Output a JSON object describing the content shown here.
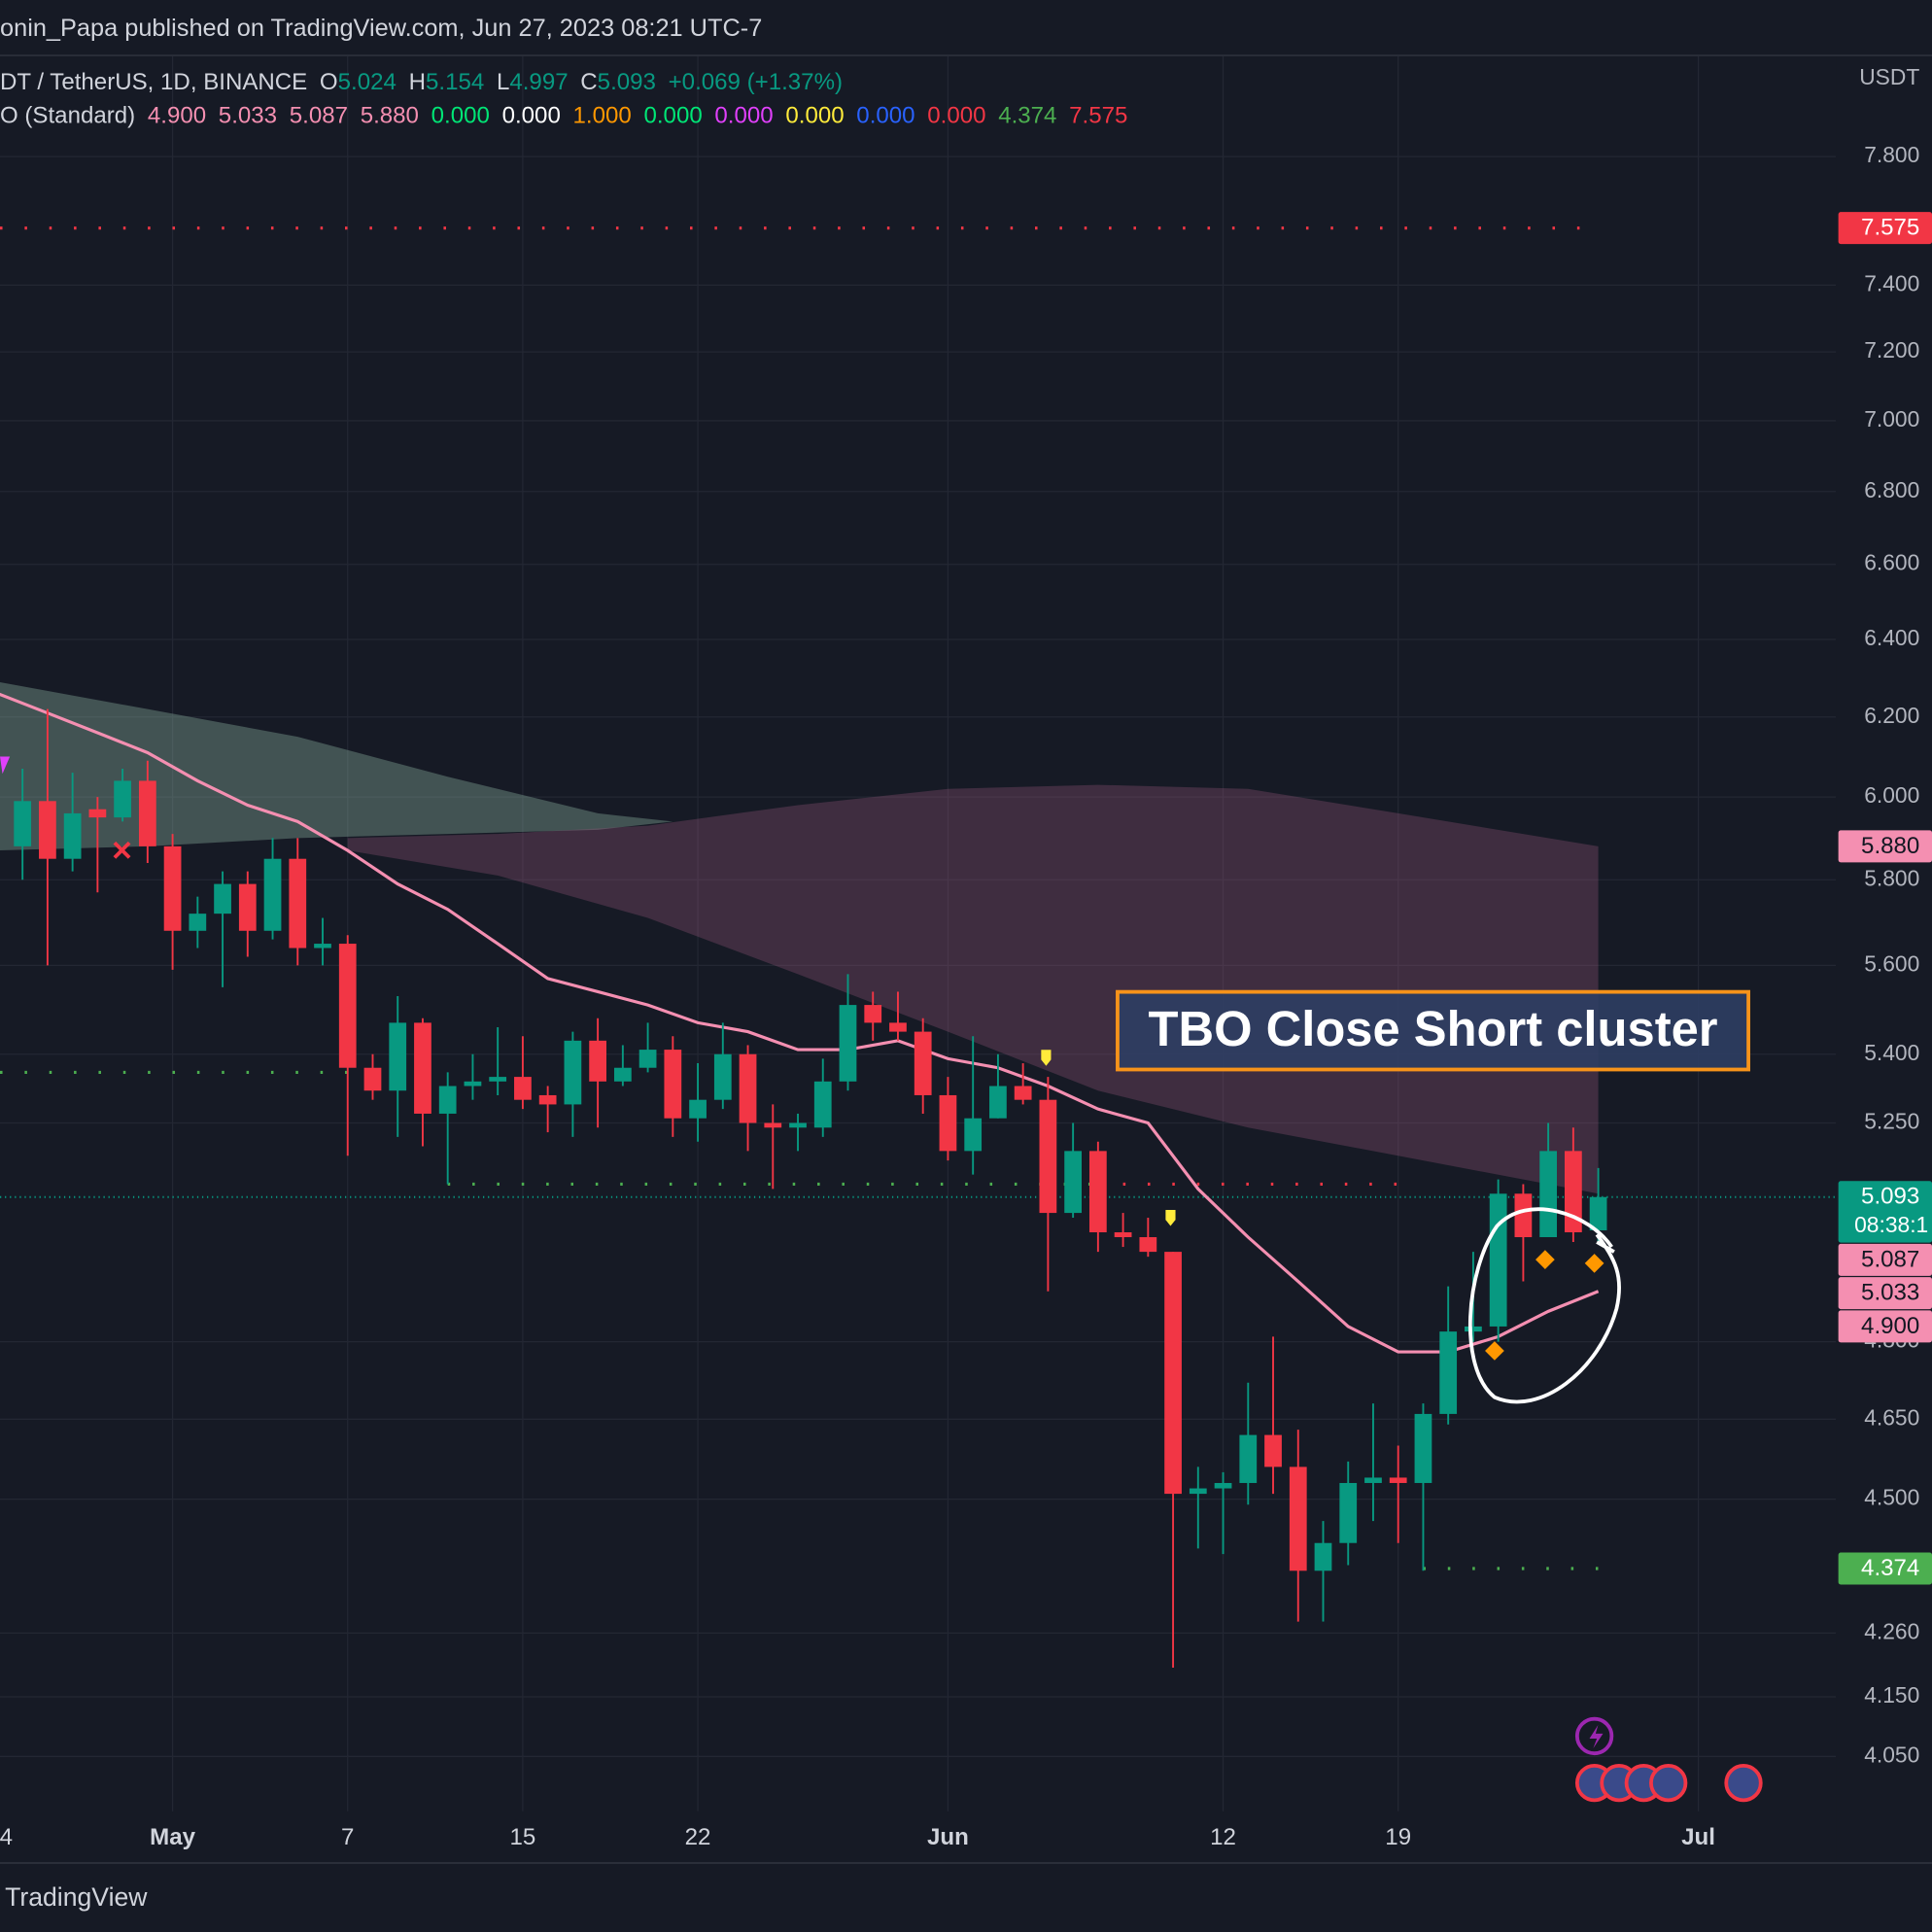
{
  "chart_data": {
    "type": "candlestick",
    "header": "onin_Papa published on TradingView.com, Jun 27, 2023 08:21 UTC-7",
    "unit": "USDT",
    "legend_line1": [
      {
        "text": "DT / TetherUS, 1D, BINANCE",
        "color": "#d1d4dc"
      },
      {
        "text": "O",
        "color": "#d1d4dc"
      },
      {
        "text": "5.024",
        "color": "#089981"
      },
      {
        "text": "H",
        "color": "#d1d4dc"
      },
      {
        "text": "5.154",
        "color": "#089981"
      },
      {
        "text": "L",
        "color": "#d1d4dc"
      },
      {
        "text": "4.997",
        "color": "#089981"
      },
      {
        "text": "C",
        "color": "#d1d4dc"
      },
      {
        "text": "5.093",
        "color": "#089981"
      },
      {
        "text": "+0.069 (+1.37%)",
        "color": "#089981"
      }
    ],
    "legend_line2": [
      {
        "text": "O (Standard)",
        "color": "#d1d4dc"
      },
      {
        "text": "4.900",
        "color": "#f48fb1"
      },
      {
        "text": "5.033",
        "color": "#f48fb1"
      },
      {
        "text": "5.087",
        "color": "#f48fb1"
      },
      {
        "text": "5.880",
        "color": "#f48fb1"
      },
      {
        "text": "0.000",
        "color": "#00e676"
      },
      {
        "text": "0.000",
        "color": "#ffffff"
      },
      {
        "text": "1.000",
        "color": "#ff9800"
      },
      {
        "text": "0.000",
        "color": "#00e676"
      },
      {
        "text": "0.000",
        "color": "#e040fb"
      },
      {
        "text": "0.000",
        "color": "#ffeb3b"
      },
      {
        "text": "0.000",
        "color": "#2962ff"
      },
      {
        "text": "0.000",
        "color": "#f23645"
      },
      {
        "text": "4.374",
        "color": "#4caf50"
      },
      {
        "text": "7.575",
        "color": "#f23645"
      }
    ],
    "log_scale": true,
    "grid": true,
    "ylim": [
      3.96,
      8.13
    ],
    "yticks": [
      {
        "value": 7.8,
        "label": "7.800"
      },
      {
        "value": 7.4,
        "label": "7.400"
      },
      {
        "value": 7.2,
        "label": "7.200"
      },
      {
        "value": 7.0,
        "label": "7.000"
      },
      {
        "value": 6.8,
        "label": "6.800"
      },
      {
        "value": 6.6,
        "label": "6.600"
      },
      {
        "value": 6.4,
        "label": "6.400"
      },
      {
        "value": 6.2,
        "label": "6.200"
      },
      {
        "value": 6.0,
        "label": "6.000"
      },
      {
        "value": 5.8,
        "label": "5.800"
      },
      {
        "value": 5.6,
        "label": "5.600"
      },
      {
        "value": 5.4,
        "label": "5.400"
      },
      {
        "value": 5.25,
        "label": "5.250"
      },
      {
        "value": 4.8,
        "label": "4.800"
      },
      {
        "value": 4.65,
        "label": "4.650"
      },
      {
        "value": 4.5,
        "label": "4.500"
      },
      {
        "value": 4.26,
        "label": "4.260"
      },
      {
        "value": 4.15,
        "label": "4.150"
      },
      {
        "value": 4.05,
        "label": "4.050"
      }
    ],
    "xlim": [
      -6.9,
      66.5
    ],
    "xticks": [
      {
        "value": -7,
        "label": "4"
      },
      {
        "value": 0,
        "label": "May"
      },
      7,
      {
        "value": 14,
        "label": "15"
      },
      {
        "value": 21,
        "label": "22"
      },
      {
        "value": 31,
        "label": "Jun"
      },
      {
        "value": 42,
        "label": "12"
      },
      {
        "value": 49,
        "label": "19"
      },
      {
        "value": 61,
        "label": "Jul"
      }
    ],
    "up_color": "#089981",
    "down_color": "#f23645",
    "candles": {
      "x": [
        -6,
        -5,
        -4,
        -3,
        -2,
        -1,
        0,
        1,
        2,
        3,
        4,
        5,
        6,
        7,
        8,
        9,
        10,
        11,
        12,
        13,
        14,
        15,
        16,
        17,
        18,
        19,
        20,
        21,
        22,
        23,
        24,
        25,
        26,
        27,
        28,
        29,
        30,
        31,
        32,
        33,
        34,
        35,
        36,
        37,
        38,
        39,
        40,
        41,
        42,
        43,
        44,
        45,
        46,
        47,
        48,
        49,
        50,
        51,
        52,
        53,
        54,
        55,
        56,
        57
      ],
      "open": [
        5.88,
        5.99,
        5.85,
        5.97,
        5.95,
        6.04,
        5.88,
        5.68,
        5.72,
        5.79,
        5.68,
        5.85,
        5.64,
        5.65,
        5.37,
        5.32,
        5.47,
        5.27,
        5.33,
        5.34,
        5.35,
        5.31,
        5.29,
        5.43,
        5.34,
        5.37,
        5.41,
        5.26,
        5.3,
        5.4,
        5.25,
        5.24,
        5.24,
        5.34,
        5.51,
        5.47,
        5.45,
        5.31,
        5.19,
        5.26,
        5.33,
        5.3,
        5.06,
        5.19,
        5.02,
        5.01,
        4.98,
        4.51,
        4.52,
        4.53,
        4.62,
        4.56,
        4.37,
        4.42,
        4.53,
        4.54,
        4.53,
        4.66,
        4.82,
        4.83,
        5.1,
        5.01,
        5.19,
        5.024
      ],
      "high": [
        6.07,
        6.22,
        6.06,
        6.0,
        6.07,
        6.09,
        5.91,
        5.76,
        5.82,
        5.82,
        5.9,
        5.9,
        5.71,
        5.67,
        5.4,
        5.53,
        5.48,
        5.36,
        5.4,
        5.46,
        5.44,
        5.33,
        5.45,
        5.48,
        5.42,
        5.47,
        5.44,
        5.38,
        5.47,
        5.42,
        5.29,
        5.27,
        5.39,
        5.58,
        5.54,
        5.54,
        5.48,
        5.35,
        5.44,
        5.4,
        5.38,
        5.35,
        5.25,
        5.21,
        5.06,
        5.05,
        4.98,
        4.56,
        4.55,
        4.72,
        4.81,
        4.63,
        4.46,
        4.57,
        4.68,
        4.6,
        4.68,
        4.91,
        4.98,
        5.13,
        5.12,
        5.25,
        5.24,
        5.154
      ],
      "low": [
        5.8,
        5.6,
        5.82,
        5.77,
        5.94,
        5.84,
        5.59,
        5.64,
        5.55,
        5.62,
        5.66,
        5.6,
        5.6,
        5.18,
        5.3,
        5.22,
        5.2,
        5.12,
        5.3,
        5.31,
        5.28,
        5.23,
        5.22,
        5.24,
        5.33,
        5.36,
        5.22,
        5.21,
        5.28,
        5.19,
        5.11,
        5.19,
        5.22,
        5.32,
        5.43,
        5.43,
        5.27,
        5.17,
        5.14,
        5.26,
        5.29,
        4.9,
        5.05,
        4.98,
        4.99,
        4.97,
        4.2,
        4.41,
        4.4,
        4.49,
        4.51,
        4.28,
        4.28,
        4.38,
        4.46,
        4.42,
        4.37,
        4.64,
        4.8,
        4.8,
        4.92,
        5.01,
        5.0,
        4.997
      ],
      "close": [
        5.99,
        5.85,
        5.96,
        5.95,
        6.04,
        5.88,
        5.68,
        5.72,
        5.79,
        5.68,
        5.85,
        5.64,
        5.65,
        5.37,
        5.32,
        5.47,
        5.27,
        5.33,
        5.34,
        5.35,
        5.3,
        5.29,
        5.43,
        5.34,
        5.37,
        5.41,
        5.26,
        5.3,
        5.4,
        5.25,
        5.24,
        5.25,
        5.34,
        5.51,
        5.47,
        5.45,
        5.31,
        5.19,
        5.26,
        5.33,
        5.3,
        5.06,
        5.19,
        5.02,
        5.01,
        4.98,
        4.51,
        4.52,
        4.53,
        4.62,
        4.56,
        4.37,
        4.42,
        4.53,
        4.54,
        4.53,
        4.66,
        4.82,
        4.83,
        5.1,
        5.01,
        5.19,
        5.02,
        5.093
      ]
    },
    "ma": {
      "color": "#f48fb1",
      "x": [
        -7,
        -5,
        -3,
        -1,
        1,
        3,
        5,
        7,
        9,
        11,
        13,
        15,
        17,
        19,
        21,
        23,
        25,
        27,
        29,
        31,
        33,
        35,
        37,
        39,
        41,
        43,
        45,
        47,
        49,
        51,
        53,
        55,
        57
      ],
      "values": [
        6.26,
        6.21,
        6.16,
        6.11,
        6.04,
        5.98,
        5.94,
        5.87,
        5.79,
        5.73,
        5.65,
        5.57,
        5.54,
        5.51,
        5.47,
        5.45,
        5.41,
        5.41,
        5.43,
        5.39,
        5.37,
        5.33,
        5.28,
        5.25,
        5.11,
        5.01,
        4.92,
        4.83,
        4.78,
        4.78,
        4.81,
        4.86,
        4.9
      ]
    },
    "clouds": [
      {
        "color": "rgba(140,175,160,0.38)",
        "x": [
          -7,
          -1,
          5,
          11,
          17,
          20
        ],
        "upper": [
          6.29,
          6.22,
          6.15,
          6.05,
          5.96,
          5.94
        ],
        "lower": [
          5.87,
          5.88,
          5.9,
          5.91,
          5.92,
          5.94
        ]
      },
      {
        "color": "rgba(150,85,120,0.33)",
        "x": [
          7,
          13,
          19,
          25,
          31,
          37,
          43,
          49,
          57
        ],
        "upper": [
          5.9,
          5.91,
          5.93,
          5.98,
          6.02,
          6.03,
          6.02,
          5.96,
          5.88
        ],
        "lower": [
          5.87,
          5.81,
          5.71,
          5.58,
          5.45,
          5.32,
          5.24,
          5.18,
          5.1
        ]
      }
    ],
    "levels": [
      {
        "value": 7.575,
        "color": "#f23645",
        "x": [
          -7,
          57
        ]
      },
      {
        "value": 5.36,
        "color": "#4caf50",
        "x": [
          -7,
          7
        ]
      },
      {
        "value": 5.12,
        "color": "#4caf50",
        "x": [
          11,
          37
        ]
      },
      {
        "value": 5.12,
        "color": "#f23645",
        "x": [
          38,
          49
        ]
      },
      {
        "value": 4.374,
        "color": "#4caf50",
        "x": [
          50,
          57
        ]
      }
    ],
    "price_labels": [
      {
        "value": 7.575,
        "label": "7.575",
        "color": "#f23645",
        "text_color": "#ffffff"
      },
      {
        "value": 5.88,
        "label": "5.880",
        "color": "#f48fb1",
        "text_color": "#131722"
      },
      {
        "value": 5.093,
        "label": "5.093",
        "color": "#089981",
        "text_color": "#ffffff"
      },
      {
        "value": 5.087,
        "label": "5.087",
        "color": "#f48fb1",
        "text_color": "#131722"
      },
      {
        "value": 5.033,
        "label": "5.033",
        "color": "#f48fb1",
        "text_color": "#131722"
      },
      {
        "value": 4.9,
        "label": "4.900",
        "color": "#f48fb1",
        "text_color": "#131722"
      },
      {
        "value": 4.374,
        "label": "4.374",
        "color": "#4caf50",
        "text_color": "#ffffff"
      }
    ],
    "countdown": "08:38:1",
    "annotation": "TBO Close Short cluster",
    "footer": "TradingView"
  }
}
